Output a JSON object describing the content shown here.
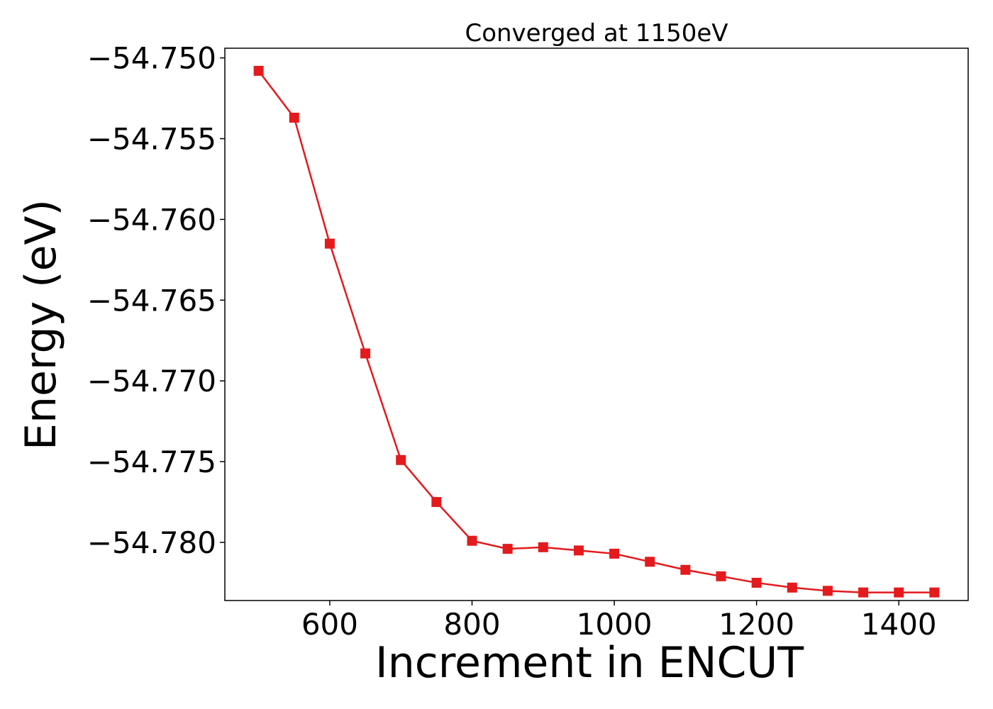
{
  "chart_data": {
    "type": "line",
    "title": "Converged at 1150eV",
    "xlabel": "Increment in ENCUT",
    "ylabel": "Energy (eV)",
    "xlim": [
      452.5,
      1497.5
    ],
    "ylim": [
      -54.7836,
      -54.7494
    ],
    "xticks": [
      600,
      800,
      1000,
      1200,
      1400
    ],
    "xtick_labels": [
      "600",
      "800",
      "1000",
      "1200",
      "1400"
    ],
    "yticks": [
      -54.75,
      -54.755,
      -54.76,
      -54.765,
      -54.77,
      -54.775,
      -54.78
    ],
    "ytick_labels": [
      "−54.750",
      "−54.755",
      "−54.760",
      "−54.765",
      "−54.770",
      "−54.775",
      "−54.780"
    ],
    "grid": false,
    "marker": "square",
    "series": [
      {
        "color": "#e41a1c",
        "x": [
          500,
          550,
          600,
          650,
          700,
          750,
          800,
          850,
          900,
          950,
          1000,
          1050,
          1100,
          1150,
          1200,
          1250,
          1300,
          1350,
          1400,
          1450
        ],
        "y": [
          -54.7508,
          -54.7537,
          -54.7615,
          -54.7683,
          -54.7749,
          -54.7775,
          -54.7799,
          -54.7804,
          -54.7803,
          -54.7805,
          -54.7807,
          -54.7812,
          -54.7817,
          -54.7821,
          -54.7825,
          -54.7828,
          -54.783,
          -54.7831,
          -54.7831,
          -54.7831
        ]
      }
    ]
  }
}
